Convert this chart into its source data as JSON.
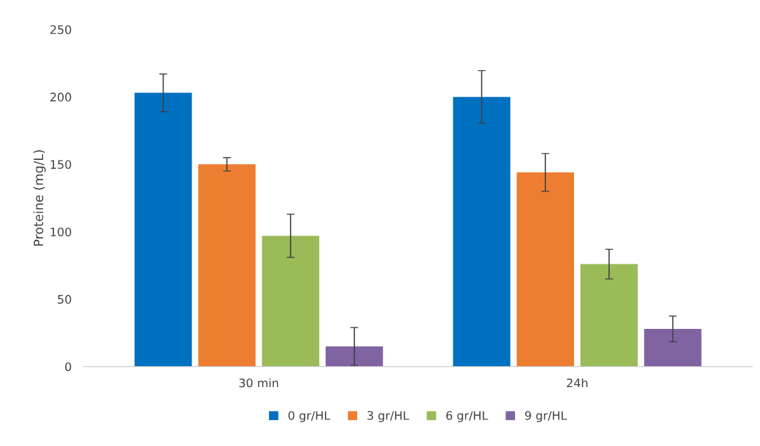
{
  "chart_data": {
    "type": "bar",
    "ylabel": "Proteine (mg/L)",
    "categories": [
      "30 min",
      "24h"
    ],
    "series": [
      {
        "name": "0 gr/HL",
        "color": "#0070c0",
        "values": [
          203,
          200
        ],
        "errors": [
          14,
          19.5
        ]
      },
      {
        "name": "3 gr/HL",
        "color": "#ed7d31",
        "values": [
          150,
          144
        ],
        "errors": [
          5,
          14
        ]
      },
      {
        "name": "6 gr/HL",
        "color": "#9bbb59",
        "values": [
          97,
          76
        ],
        "errors": [
          16,
          11
        ]
      },
      {
        "name": "9 gr/HL",
        "color": "#8064a2",
        "values": [
          15,
          28
        ],
        "errors": [
          14,
          9.5
        ]
      }
    ],
    "ylim": [
      0,
      250
    ],
    "yticks": [
      0,
      50,
      100,
      150,
      200,
      250
    ],
    "grid": false,
    "legend": "bottom"
  }
}
